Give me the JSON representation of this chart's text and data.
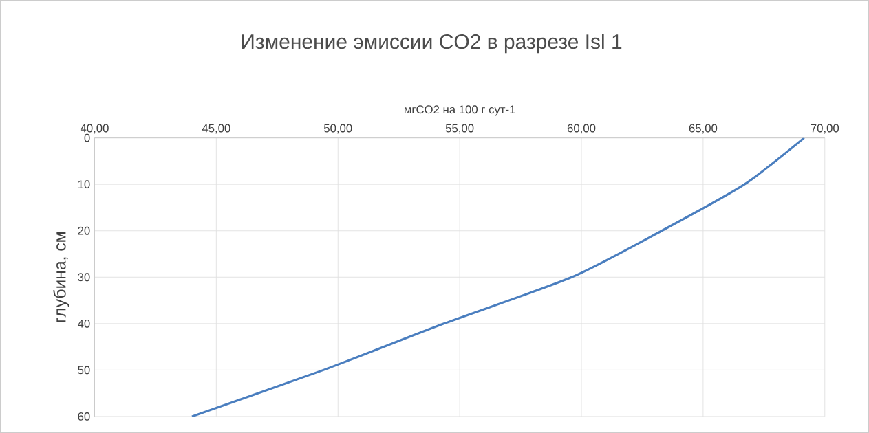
{
  "chart_data": {
    "type": "line",
    "title": "Изменение эмиссии CO2 в разрезе Isl 1",
    "xlabel": "мгCO2 на 100 г сут-1",
    "ylabel": "глубина, см",
    "xlim": [
      40,
      70
    ],
    "xticks": [
      {
        "value": 40,
        "label": "40,00"
      },
      {
        "value": 45,
        "label": "45,00"
      },
      {
        "value": 50,
        "label": "50,00"
      },
      {
        "value": 55,
        "label": "55,00"
      },
      {
        "value": 60,
        "label": "60,00"
      },
      {
        "value": 65,
        "label": "65,00"
      },
      {
        "value": 70,
        "label": "70,00"
      }
    ],
    "ylim": [
      60,
      0
    ],
    "yticks": [
      0,
      10,
      20,
      30,
      40,
      50,
      60
    ],
    "grid": true,
    "series": [
      {
        "color": "#4a7ebf",
        "x": [
          69.15,
          66.7,
          63.3,
          59.6,
          54.35,
          49.4,
          44.0
        ],
        "values": [
          0,
          10,
          20,
          30,
          40,
          50,
          60
        ]
      }
    ]
  }
}
